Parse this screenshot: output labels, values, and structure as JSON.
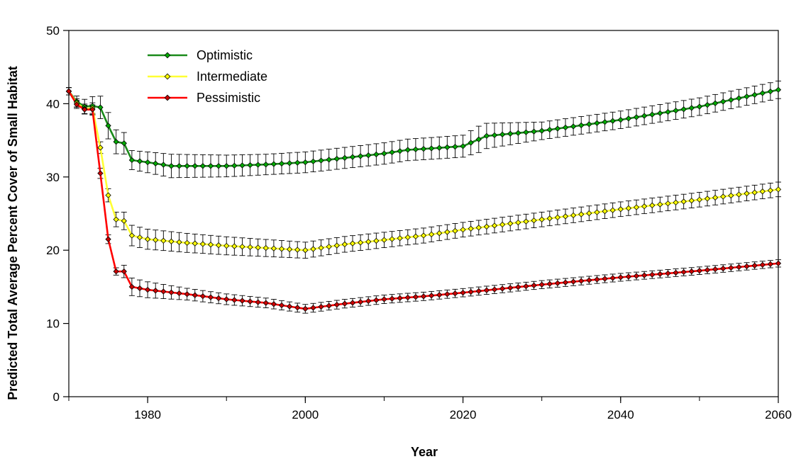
{
  "chart_data": {
    "type": "line",
    "title": "",
    "xlabel": "Year",
    "ylabel": "Predicted Total Average Percent Cover of Small Habitat",
    "xlim": [
      1970,
      2060
    ],
    "ylim": [
      0,
      50
    ],
    "xticks": [
      1980,
      2000,
      2020,
      2040,
      2060
    ],
    "yticks": [
      0,
      10,
      20,
      30,
      40,
      50
    ],
    "legend_position": "top-left",
    "grid": false,
    "series": [
      {
        "name": "Optimistic",
        "color": "#1a8a1a",
        "marker_color": "#00aa00",
        "anchors": [
          [
            1970,
            41.7
          ],
          [
            1971,
            40.3
          ],
          [
            1972,
            39.6
          ],
          [
            1973,
            39.7
          ],
          [
            1974,
            39.5
          ],
          [
            1975,
            37.0
          ],
          [
            1976,
            34.8
          ],
          [
            1977,
            34.6
          ],
          [
            1978,
            32.3
          ],
          [
            1980,
            32.0
          ],
          [
            1983,
            31.5
          ],
          [
            1990,
            31.5
          ],
          [
            1995,
            31.7
          ],
          [
            2000,
            32.0
          ],
          [
            2005,
            32.6
          ],
          [
            2010,
            33.2
          ],
          [
            2013,
            33.7
          ],
          [
            2016,
            33.9
          ],
          [
            2020,
            34.2
          ],
          [
            2023,
            35.6
          ],
          [
            2030,
            36.3
          ],
          [
            2040,
            37.8
          ],
          [
            2050,
            39.6
          ],
          [
            2060,
            41.9
          ]
        ],
        "err_anchors": [
          [
            1970,
            0.5
          ],
          [
            1972,
            1.0
          ],
          [
            1975,
            1.8
          ],
          [
            1978,
            1.3
          ],
          [
            1983,
            1.6
          ],
          [
            1995,
            1.4
          ],
          [
            2020,
            1.5
          ],
          [
            2022,
            1.8
          ],
          [
            2030,
            1.2
          ],
          [
            2060,
            1.2
          ]
        ]
      },
      {
        "name": "Intermediate",
        "color": "#ffff33",
        "marker_color": "#ffff00",
        "anchors": [
          [
            1970,
            41.7
          ],
          [
            1971,
            40.1
          ],
          [
            1972,
            39.3
          ],
          [
            1973,
            39.4
          ],
          [
            1974,
            34.0
          ],
          [
            1975,
            27.5
          ],
          [
            1976,
            24.2
          ],
          [
            1977,
            24.0
          ],
          [
            1978,
            22.0
          ],
          [
            1980,
            21.5
          ],
          [
            1985,
            21.0
          ],
          [
            1990,
            20.6
          ],
          [
            1995,
            20.3
          ],
          [
            2000,
            20.0
          ],
          [
            2005,
            20.8
          ],
          [
            2010,
            21.4
          ],
          [
            2015,
            22.0
          ],
          [
            2020,
            22.8
          ],
          [
            2030,
            24.2
          ],
          [
            2040,
            25.6
          ],
          [
            2050,
            26.9
          ],
          [
            2060,
            28.3
          ]
        ],
        "err_anchors": [
          [
            1970,
            0.5
          ],
          [
            1974,
            0.8
          ],
          [
            1975,
            0.9
          ],
          [
            1976,
            1.0
          ],
          [
            1978,
            1.4
          ],
          [
            1985,
            1.3
          ],
          [
            2000,
            1.1
          ],
          [
            2020,
            1.0
          ],
          [
            2060,
            1.0
          ]
        ]
      },
      {
        "name": "Pessimistic",
        "color": "#ff0000",
        "marker_color": "#cc0000",
        "anchors": [
          [
            1970,
            41.7
          ],
          [
            1971,
            39.9
          ],
          [
            1972,
            39.2
          ],
          [
            1973,
            39.2
          ],
          [
            1974,
            30.5
          ],
          [
            1975,
            21.5
          ],
          [
            1976,
            17.1
          ],
          [
            1977,
            17.1
          ],
          [
            1978,
            15.0
          ],
          [
            1980,
            14.6
          ],
          [
            1985,
            14.0
          ],
          [
            1990,
            13.3
          ],
          [
            1995,
            12.8
          ],
          [
            2000,
            12.0
          ],
          [
            2005,
            12.7
          ],
          [
            2010,
            13.3
          ],
          [
            2015,
            13.7
          ],
          [
            2020,
            14.2
          ],
          [
            2030,
            15.3
          ],
          [
            2040,
            16.3
          ],
          [
            2050,
            17.2
          ],
          [
            2060,
            18.2
          ]
        ],
        "err_anchors": [
          [
            1970,
            0.5
          ],
          [
            1974,
            0.7
          ],
          [
            1975,
            0.6
          ],
          [
            1976,
            0.5
          ],
          [
            1978,
            1.2
          ],
          [
            1985,
            0.8
          ],
          [
            2000,
            0.6
          ],
          [
            2060,
            0.5
          ]
        ]
      }
    ]
  }
}
